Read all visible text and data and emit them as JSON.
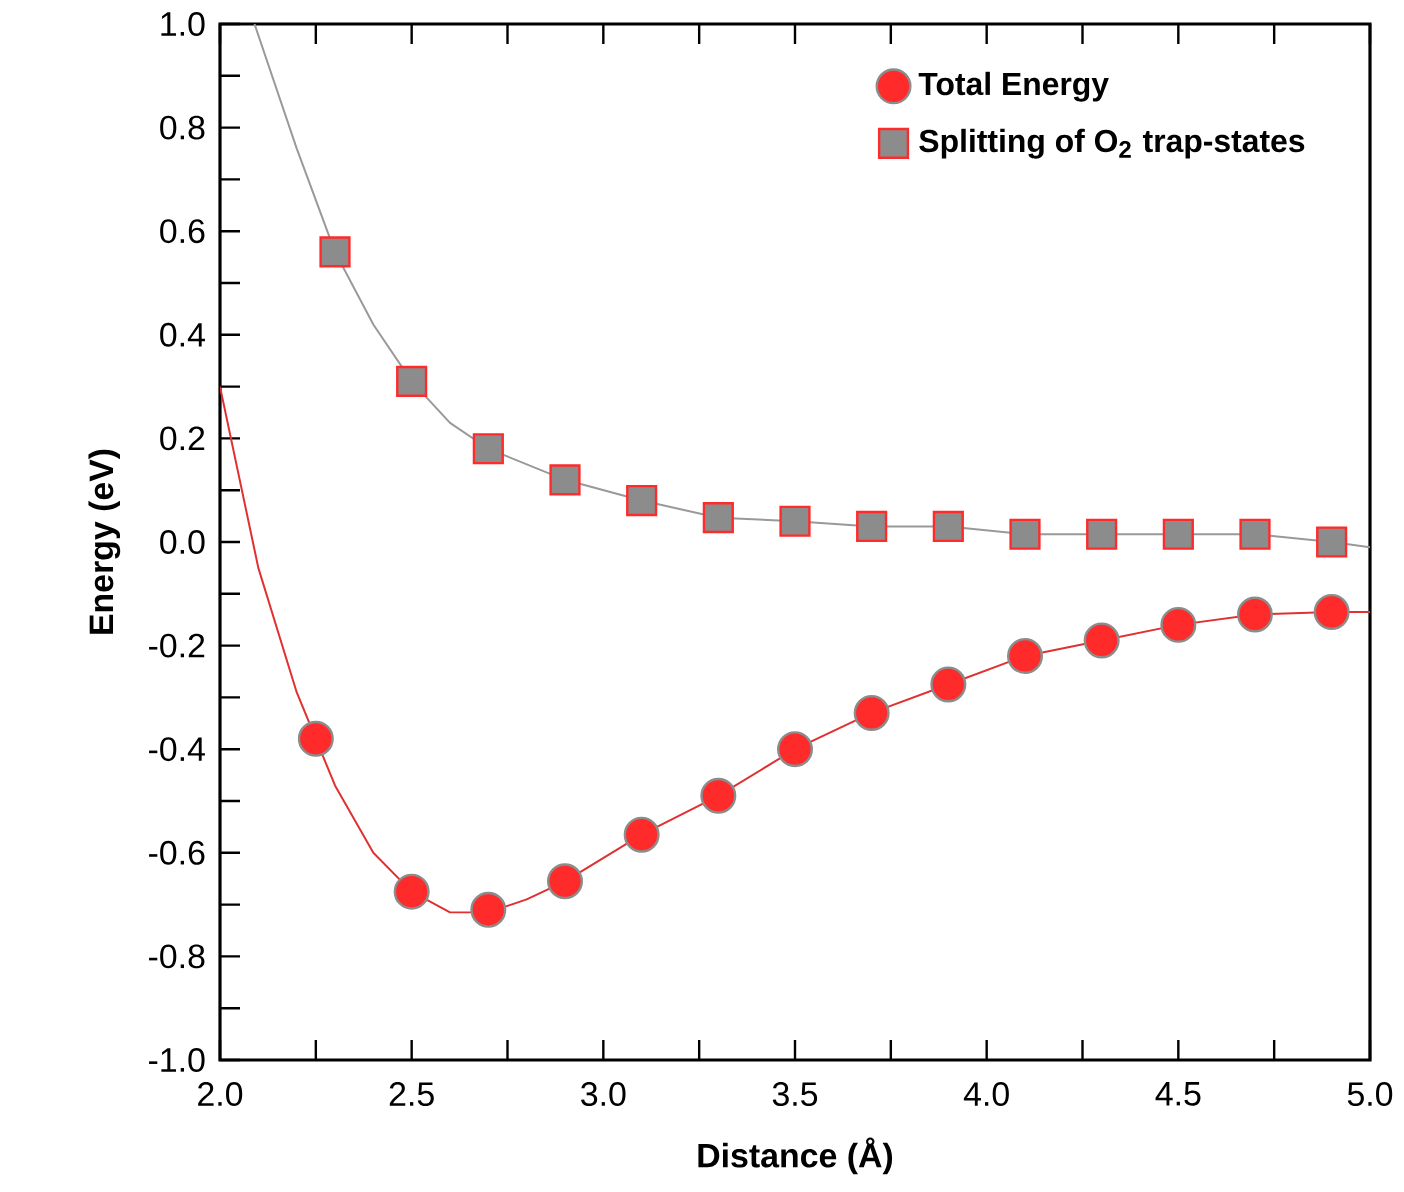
{
  "chart_data": {
    "type": "scatter",
    "xlabel": "Distance (Å)",
    "ylabel": "Energy (eV)",
    "xlim": [
      2.0,
      5.0
    ],
    "ylim": [
      -1.0,
      1.0
    ],
    "xticks": [
      {
        "value": 2,
        "label": "2.0"
      },
      {
        "value": 2.25,
        "label": null
      },
      2.5,
      {
        "value": 2.75,
        "label": null
      },
      {
        "value": 3,
        "label": "3.0"
      },
      {
        "value": 3.25,
        "label": null
      },
      3.5,
      {
        "value": 3.75,
        "label": null
      },
      {
        "value": 4,
        "label": "4.0"
      },
      {
        "value": 4.25,
        "label": null
      },
      4.5,
      {
        "value": 4.75,
        "label": null
      },
      {
        "value": 5,
        "label": "5.0"
      }
    ],
    "yticks": [
      {
        "value": -1,
        "label": "-1.0"
      },
      {
        "value": -0.9,
        "label": null
      },
      -0.8,
      {
        "value": -0.7,
        "label": null
      },
      -0.6,
      {
        "value": -0.5,
        "label": null
      },
      -0.4,
      {
        "value": -0.3,
        "label": null
      },
      -0.2,
      {
        "value": -0.1,
        "label": null
      },
      {
        "value": 0,
        "label": "0.0"
      },
      {
        "value": 0.1,
        "label": null
      },
      0.2,
      {
        "value": 0.3,
        "label": null
      },
      0.4,
      {
        "value": 0.5,
        "label": null
      },
      0.6,
      {
        "value": 0.7,
        "label": null
      },
      0.8,
      {
        "value": 0.9,
        "label": null
      },
      {
        "value": 1,
        "label": "1.0"
      }
    ],
    "legend": "top right",
    "series": [
      {
        "type": "line",
        "color": "#e03030",
        "x": [
          2.0,
          2.1,
          2.2,
          2.3,
          2.4,
          2.5,
          2.6,
          2.7,
          2.8,
          2.9,
          3.1,
          3.3,
          3.5,
          3.7,
          3.9,
          4.1,
          4.3,
          4.5,
          4.7,
          4.9,
          5.0
        ],
        "values": [
          0.3,
          -0.05,
          -0.29,
          -0.47,
          -0.6,
          -0.675,
          -0.715,
          -0.715,
          -0.69,
          -0.655,
          -0.565,
          -0.49,
          -0.4,
          -0.33,
          -0.275,
          -0.22,
          -0.19,
          -0.16,
          -0.14,
          -0.135,
          -0.135
        ]
      },
      {
        "type": "line",
        "color": "#999999",
        "x": [
          2.09,
          2.2,
          2.3,
          2.4,
          2.5,
          2.6,
          2.7,
          2.9,
          3.1,
          3.3,
          3.5,
          3.7,
          3.9,
          4.1,
          4.3,
          4.5,
          4.7,
          4.9,
          5.0
        ],
        "values": [
          1.0,
          0.76,
          0.56,
          0.42,
          0.31,
          0.23,
          0.18,
          0.12,
          0.08,
          0.047,
          0.04,
          0.03,
          0.03,
          0.015,
          0.015,
          0.015,
          0.015,
          0.0,
          -0.01
        ]
      },
      {
        "name": "Total Energy",
        "marker": "circle",
        "color": "#ff2a2a",
        "x": [
          2.25,
          2.5,
          2.7,
          2.9,
          3.1,
          3.3,
          3.5,
          3.7,
          3.9,
          4.1,
          4.3,
          4.5,
          4.7,
          4.9
        ],
        "values": [
          -0.38,
          -0.675,
          -0.71,
          -0.655,
          -0.565,
          -0.49,
          -0.4,
          -0.33,
          -0.275,
          -0.22,
          -0.19,
          -0.16,
          -0.14,
          -0.135
        ]
      },
      {
        "name": "Splitting of O$_{2}$ trap-states",
        "marker": "square",
        "color": "#8c8c8c",
        "x": [
          2.3,
          2.5,
          2.7,
          2.9,
          3.1,
          3.3,
          3.5,
          3.7,
          3.9,
          4.1,
          4.3,
          4.5,
          4.7,
          4.9
        ],
        "values": [
          0.56,
          0.31,
          0.18,
          0.12,
          0.08,
          0.047,
          0.04,
          0.03,
          0.03,
          0.015,
          0.015,
          0.015,
          0.015,
          0.0
        ]
      }
    ]
  }
}
